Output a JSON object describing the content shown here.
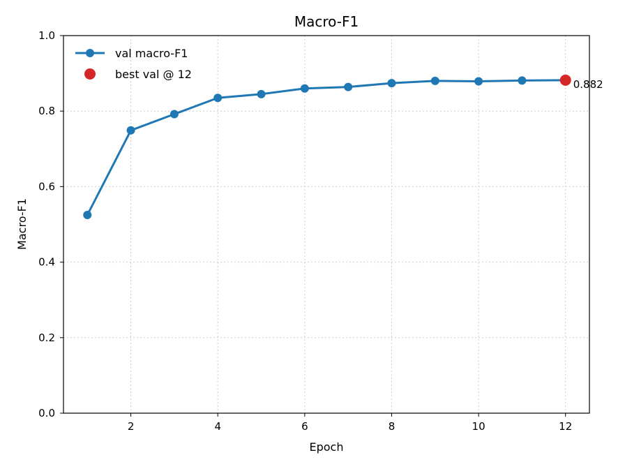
{
  "chart_data": {
    "type": "line",
    "title": "Macro-F1",
    "xlabel": "Epoch",
    "ylabel": "Macro-F1",
    "xlim": [
      0.45,
      12.55
    ],
    "ylim": [
      0.0,
      1.0
    ],
    "xticks": [
      2,
      4,
      6,
      8,
      10,
      12
    ],
    "yticks": [
      0.0,
      0.2,
      0.4,
      0.6,
      0.8,
      1.0
    ],
    "xtick_labels": [
      "2",
      "4",
      "6",
      "8",
      "10",
      "12"
    ],
    "ytick_labels": [
      "0.0",
      "0.2",
      "0.4",
      "0.6",
      "0.8",
      "1.0"
    ],
    "grid": true,
    "legend_position": "upper-left",
    "series": [
      {
        "name": "val macro-F1",
        "color": "#1f77b4",
        "x": [
          1,
          2,
          3,
          4,
          5,
          6,
          7,
          8,
          9,
          10,
          11,
          12
        ],
        "y": [
          0.525,
          0.749,
          0.792,
          0.835,
          0.845,
          0.86,
          0.864,
          0.874,
          0.88,
          0.879,
          0.881,
          0.882
        ]
      }
    ],
    "highlight": {
      "name": "best val @ 12",
      "color": "#d62728",
      "x": 12,
      "y": 0.882,
      "label": "0.882"
    }
  }
}
